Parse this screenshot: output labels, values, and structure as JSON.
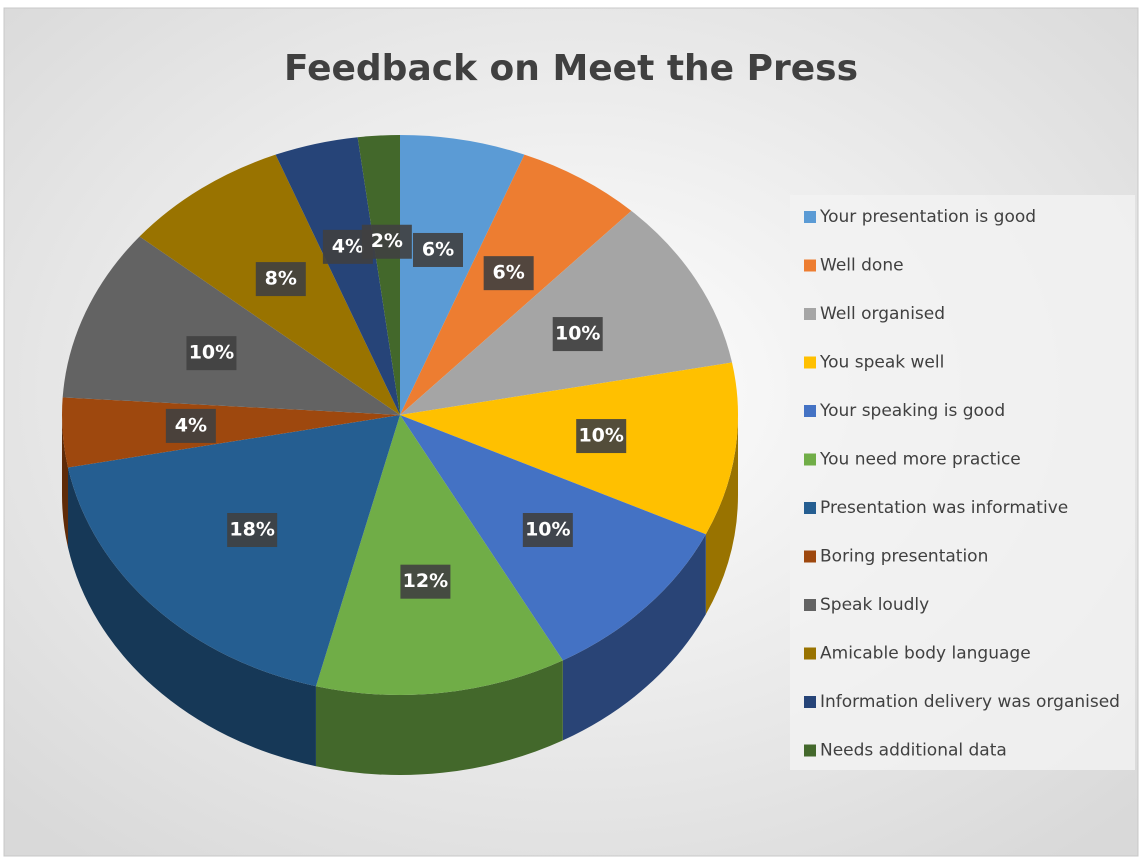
{
  "chart_data": {
    "type": "pie",
    "title": "Feedback on Meet the Press",
    "categories": [
      "Your presentation is good",
      "Well done",
      "Well organised",
      "You speak well",
      "Your speaking is good",
      "You need more practice",
      "Presentation was informative",
      "Boring presentation",
      "Speak loudly",
      "Amicable body language",
      "Information delivery was organised",
      "Needs additional data"
    ],
    "values": [
      6,
      6,
      10,
      10,
      10,
      12,
      18,
      4,
      10,
      8,
      4,
      2
    ],
    "value_labels": [
      "6%",
      "6%",
      "10%",
      "10%",
      "10%",
      "12%",
      "18%",
      "4%",
      "10%",
      "8%",
      "4%",
      "2%"
    ],
    "colors": [
      "#5b9bd5",
      "#ed7d31",
      "#a5a5a5",
      "#ffc000",
      "#4472c4",
      "#70ad47",
      "#255e91",
      "#9e480e",
      "#636363",
      "#997300",
      "#264478",
      "#43682b"
    ],
    "legend": "right"
  }
}
